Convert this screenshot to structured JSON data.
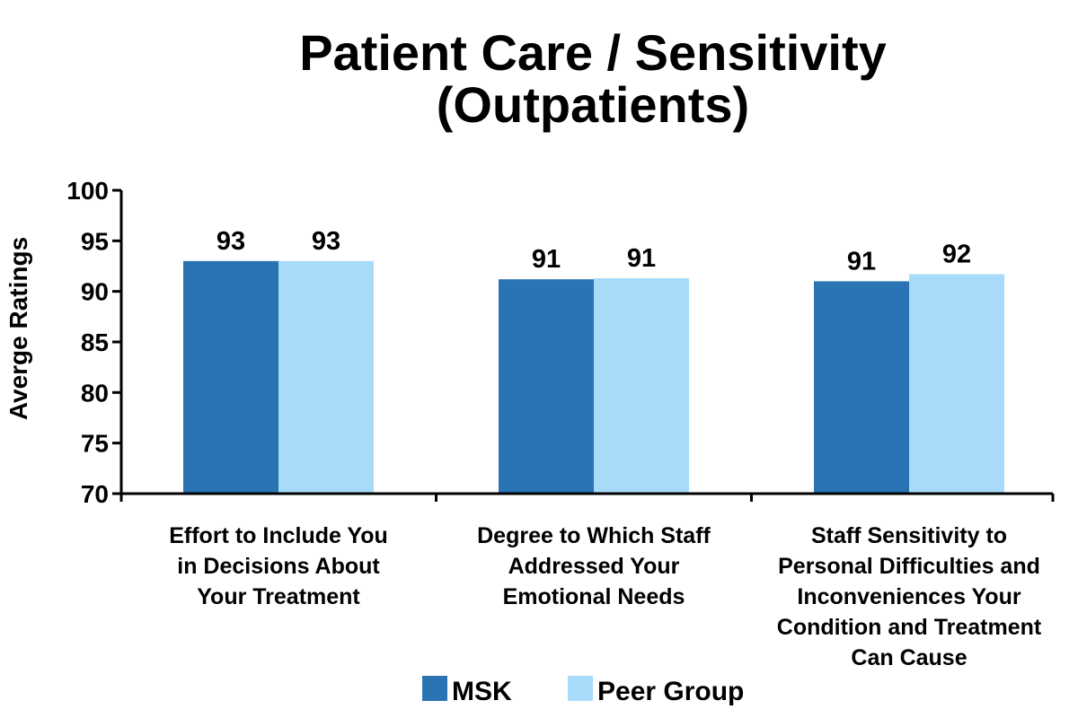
{
  "chart_data": {
    "type": "bar",
    "title": [
      "Patient Care / Sensitivity",
      "(Outpatients)"
    ],
    "xlabel": "",
    "ylabel": "Averge Ratings",
    "ylim": [
      70,
      100
    ],
    "yticks": [
      70,
      75,
      80,
      85,
      90,
      95,
      100
    ],
    "grid": false,
    "legend_position": "bottom",
    "categories": [
      [
        "Effort to Include You",
        "in Decisions About",
        "Your Treatment"
      ],
      [
        "Degree to Which Staff",
        "Addressed Your",
        "Emotional Needs"
      ],
      [
        "Staff Sensitivity to",
        "Personal Difficulties and",
        "Inconveniences Your",
        "Condition and Treatment",
        "Can Cause"
      ]
    ],
    "series": [
      {
        "name": "MSK",
        "color": "#2a74b3",
        "values": [
          93.0,
          91.2,
          91.0
        ],
        "labels": [
          "93",
          "91",
          "91"
        ]
      },
      {
        "name": "Peer Group",
        "color": "#a7dbf9",
        "values": [
          93.0,
          91.3,
          91.7
        ],
        "labels": [
          "93",
          "91",
          "92"
        ]
      }
    ]
  }
}
